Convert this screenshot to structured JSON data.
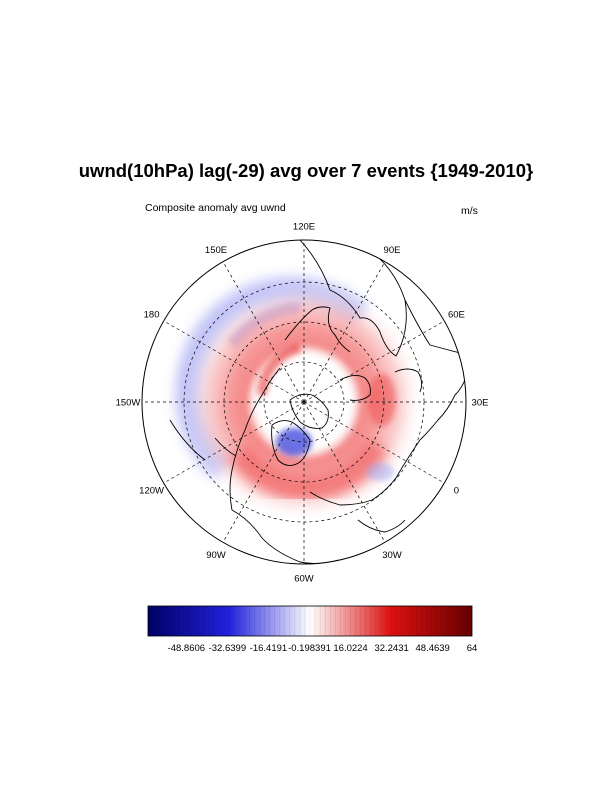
{
  "title": "uwnd(10hPa) lag(-29) avg over 7 events {1949-2010}",
  "subtitle_left": "Composite anomaly avg uwnd",
  "subtitle_right": "m/s",
  "longitude_labels": [
    {
      "text": "120E"
    },
    {
      "text": "90E"
    },
    {
      "text": "60E"
    },
    {
      "text": "30E"
    },
    {
      "text": "0"
    },
    {
      "text": "30W"
    },
    {
      "text": "60W"
    },
    {
      "text": "90W"
    },
    {
      "text": "120W"
    },
    {
      "text": "150W"
    },
    {
      "text": "180"
    },
    {
      "text": "150E"
    }
  ],
  "colorbar": {
    "min": -64,
    "max": 64,
    "tick_labels": [
      "-48.8606",
      "-32.6399",
      "-16.4191",
      "-0.198391",
      "16.0224",
      "32.2431",
      "48.4639",
      "64"
    ],
    "colors": {
      "low": "#000066",
      "mid_low": "#2222dd",
      "mid": "#ffffff",
      "mid_high": "#dd1111",
      "high": "#660000"
    }
  },
  "anomaly_colors": {
    "negative": "#7f86f0",
    "negative_strong": "#3b3fd8",
    "positive": "#f26666",
    "positive_strong": "#e01e1e"
  }
}
